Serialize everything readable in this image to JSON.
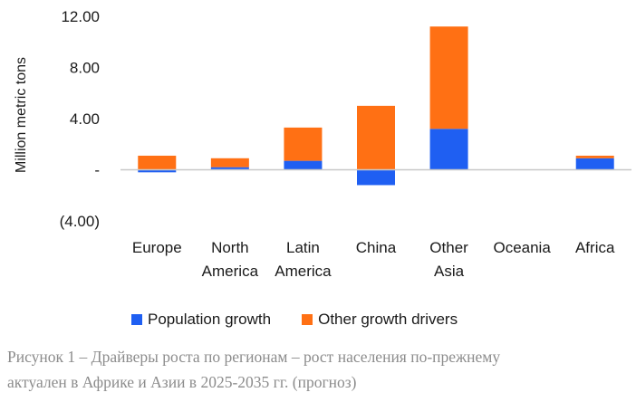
{
  "chart_data": {
    "type": "bar",
    "stacked": true,
    "ylabel": "Million metric tons",
    "ylim": [
      -4,
      12
    ],
    "yticks": [
      {
        "value": 12,
        "label": "12.00"
      },
      {
        "value": 8,
        "label": "8.00"
      },
      {
        "value": 4,
        "label": "4.00"
      },
      {
        "value": 0,
        "label": "-"
      },
      {
        "value": -4,
        "label": "(4.00)"
      }
    ],
    "categories": [
      {
        "lines": [
          "Europe"
        ]
      },
      {
        "lines": [
          "North",
          "America"
        ]
      },
      {
        "lines": [
          "Latin",
          "America"
        ]
      },
      {
        "lines": [
          "China"
        ]
      },
      {
        "lines": [
          "Other",
          "Asia"
        ]
      },
      {
        "lines": [
          "Oceania"
        ]
      },
      {
        "lines": [
          "Africa"
        ]
      }
    ],
    "series": [
      {
        "name": "Population growth",
        "color": "#1f5ff2",
        "values": [
          -0.2,
          0.2,
          0.7,
          -1.2,
          3.2,
          0.0,
          0.9
        ]
      },
      {
        "name": "Other growth drivers",
        "color": "#ff7014",
        "values": [
          1.1,
          0.7,
          2.6,
          5.0,
          8.0,
          0.0,
          0.2
        ]
      }
    ],
    "legend_position": "bottom",
    "grid": false
  },
  "caption": {
    "line1": "Рисунок 1 – Драйверы роста по регионам – рост населения по-прежнему",
    "line2": "актуален в Африке и Азии в 2025-2035 гг. (прогноз)"
  }
}
